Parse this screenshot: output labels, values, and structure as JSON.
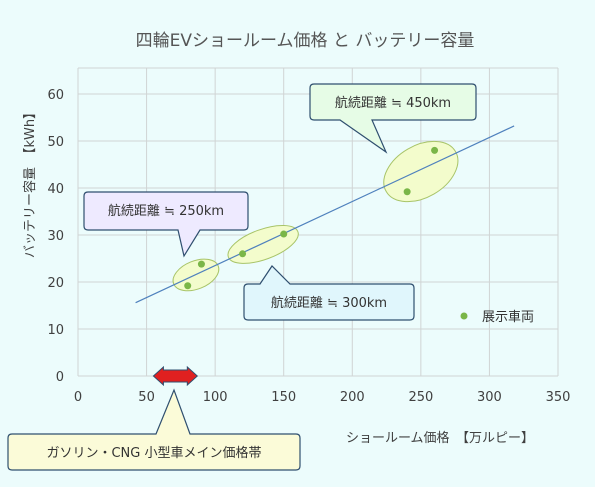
{
  "chart_data": {
    "type": "scatter",
    "title": "四輪EVショールーム価格 と バッテリー容量",
    "xlabel": "ショールーム価格　【万ルピー】",
    "ylabel": "バッテリー容量　【kWh】",
    "xlim": [
      0,
      350
    ],
    "ylim": [
      0,
      60
    ],
    "x_ticks": [
      "0",
      "50",
      "100",
      "150",
      "200",
      "250",
      "300",
      "350"
    ],
    "y_ticks": [
      "0",
      "10",
      "20",
      "30",
      "40",
      "50",
      "60"
    ],
    "grid": true,
    "legend": "right",
    "series": [
      {
        "name": "展示車両",
        "color": "#7ab648",
        "points": [
          {
            "x": 80,
            "y": 19.2
          },
          {
            "x": 90,
            "y": 23.8
          },
          {
            "x": 120,
            "y": 26
          },
          {
            "x": 150,
            "y": 30.2
          },
          {
            "x": 240,
            "y": 39.2
          },
          {
            "x": 260,
            "y": 48
          }
        ]
      }
    ],
    "trendline": {
      "x": [
        42,
        318
      ],
      "y": [
        15.6,
        53.2
      ],
      "color": "#4f81bd"
    },
    "annotations": [
      {
        "text": "航続距離 ≒ 250km",
        "fill": "#eeeaff"
      },
      {
        "text": "航続距離 ≒ 300km",
        "fill": "#e0f6fc"
      },
      {
        "text": "航続距離 ≒ 450km",
        "fill": "#e6fce6"
      },
      {
        "text": "ガソリン・CNG 小型車メイン価格帯",
        "fill": "#fbfbd8"
      }
    ],
    "price_band": {
      "x": [
        55,
        87
      ],
      "color": "#e02020"
    }
  }
}
